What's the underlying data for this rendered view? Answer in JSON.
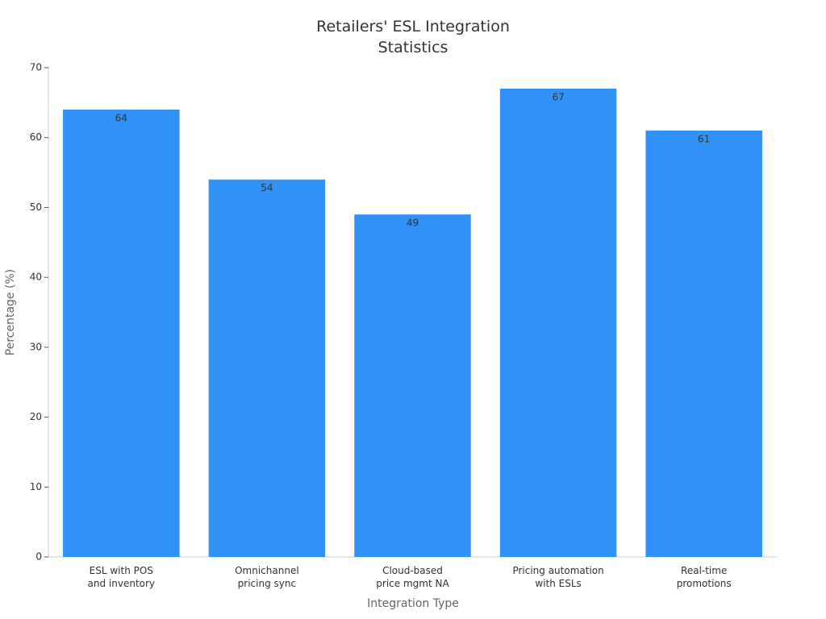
{
  "chart_data": {
    "type": "bar",
    "title": "Retailers' ESL Integration\nStatistics",
    "x_label": "Integration Type",
    "y_label": "Percentage (%)",
    "categories": [
      "ESL with POS\nand inventory",
      "Omnichannel\npricing sync",
      "Cloud-based\nprice mgmt NA",
      "Pricing automation\nwith ESLs",
      "Real-time\npromotions"
    ],
    "values": [
      64,
      54,
      49,
      67,
      61
    ],
    "color": "#3091f7",
    "ylim": [
      0,
      70
    ],
    "yticks": [
      0,
      10,
      20,
      30,
      40,
      50,
      60,
      70
    ],
    "grid": false
  }
}
